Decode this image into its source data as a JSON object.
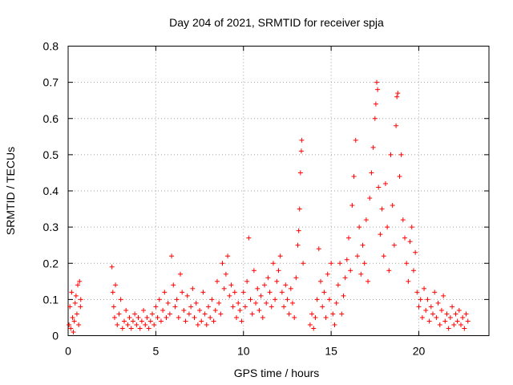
{
  "chart_data": {
    "type": "scatter",
    "title": "Day 204 of 2021, SRMTID for receiver spja",
    "xlabel": "GPS time / hours",
    "ylabel": "SRMTID / TECUs",
    "xlim": [
      0,
      24
    ],
    "ylim": [
      0,
      0.8
    ],
    "xticks": [
      0,
      5,
      10,
      15,
      20
    ],
    "yticks": [
      0,
      0.1,
      0.2,
      0.3,
      0.4,
      0.5,
      0.6,
      0.7,
      0.8
    ],
    "xtick_labels": [
      "0",
      "5",
      "10",
      "15",
      "20"
    ],
    "ytick_labels": [
      "0",
      "0.1",
      "0.2",
      "0.3",
      "0.4",
      "0.5",
      "0.6",
      "0.7",
      "0.8"
    ],
    "grid": true,
    "marker": "+",
    "color": "#ff0000",
    "series": [
      {
        "name": "SRMTID",
        "points": [
          [
            0.05,
            0.03
          ],
          [
            0.1,
            0.08
          ],
          [
            0.15,
            0.02
          ],
          [
            0.2,
            0.12
          ],
          [
            0.25,
            0.05
          ],
          [
            0.3,
            0.01
          ],
          [
            0.35,
            0.04
          ],
          [
            0.4,
            0.09
          ],
          [
            0.45,
            0.11
          ],
          [
            0.5,
            0.06
          ],
          [
            0.55,
            0.14
          ],
          [
            0.6,
            0.03
          ],
          [
            0.65,
            0.15
          ],
          [
            0.7,
            0.08
          ],
          [
            0.72,
            0.1
          ],
          [
            2.5,
            0.19
          ],
          [
            2.55,
            0.12
          ],
          [
            2.6,
            0.08
          ],
          [
            2.65,
            0.05
          ],
          [
            2.7,
            0.14
          ],
          [
            2.8,
            0.03
          ],
          [
            2.9,
            0.06
          ],
          [
            3.0,
            0.1
          ],
          [
            3.1,
            0.02
          ],
          [
            3.2,
            0.04
          ],
          [
            3.3,
            0.07
          ],
          [
            3.4,
            0.03
          ],
          [
            3.5,
            0.05
          ],
          [
            3.6,
            0.02
          ],
          [
            3.7,
            0.04
          ],
          [
            3.8,
            0.06
          ],
          [
            3.9,
            0.03
          ],
          [
            4.0,
            0.05
          ],
          [
            4.1,
            0.02
          ],
          [
            4.2,
            0.04
          ],
          [
            4.3,
            0.07
          ],
          [
            4.4,
            0.03
          ],
          [
            4.5,
            0.05
          ],
          [
            4.6,
            0.02
          ],
          [
            4.7,
            0.04
          ],
          [
            4.8,
            0.06
          ],
          [
            4.9,
            0.03
          ],
          [
            5.0,
            0.08
          ],
          [
            5.1,
            0.05
          ],
          [
            5.2,
            0.1
          ],
          [
            5.3,
            0.04
          ],
          [
            5.4,
            0.07
          ],
          [
            5.5,
            0.12
          ],
          [
            5.6,
            0.05
          ],
          [
            5.7,
            0.09
          ],
          [
            5.8,
            0.06
          ],
          [
            5.9,
            0.22
          ],
          [
            6.0,
            0.14
          ],
          [
            6.1,
            0.08
          ],
          [
            6.2,
            0.1
          ],
          [
            6.3,
            0.05
          ],
          [
            6.4,
            0.17
          ],
          [
            6.5,
            0.12
          ],
          [
            6.6,
            0.07
          ],
          [
            6.7,
            0.04
          ],
          [
            6.8,
            0.11
          ],
          [
            6.9,
            0.06
          ],
          [
            7.0,
            0.08
          ],
          [
            7.1,
            0.13
          ],
          [
            7.2,
            0.05
          ],
          [
            7.3,
            0.09
          ],
          [
            7.4,
            0.03
          ],
          [
            7.5,
            0.07
          ],
          [
            7.6,
            0.04
          ],
          [
            7.7,
            0.12
          ],
          [
            7.8,
            0.06
          ],
          [
            7.9,
            0.03
          ],
          [
            8.0,
            0.08
          ],
          [
            8.1,
            0.05
          ],
          [
            8.2,
            0.1
          ],
          [
            8.3,
            0.04
          ],
          [
            8.4,
            0.07
          ],
          [
            8.5,
            0.15
          ],
          [
            8.6,
            0.09
          ],
          [
            8.7,
            0.06
          ],
          [
            8.8,
            0.2
          ],
          [
            8.9,
            0.13
          ],
          [
            9.0,
            0.17
          ],
          [
            9.1,
            0.22
          ],
          [
            9.2,
            0.11
          ],
          [
            9.3,
            0.14
          ],
          [
            9.4,
            0.08
          ],
          [
            9.5,
            0.12
          ],
          [
            9.6,
            0.05
          ],
          [
            9.7,
            0.09
          ],
          [
            9.8,
            0.07
          ],
          [
            9.9,
            0.04
          ],
          [
            10.0,
            0.12
          ],
          [
            10.1,
            0.08
          ],
          [
            10.2,
            0.15
          ],
          [
            10.3,
            0.27
          ],
          [
            10.4,
            0.1
          ],
          [
            10.5,
            0.06
          ],
          [
            10.6,
            0.18
          ],
          [
            10.7,
            0.09
          ],
          [
            10.8,
            0.13
          ],
          [
            10.9,
            0.07
          ],
          [
            11.0,
            0.11
          ],
          [
            11.1,
            0.05
          ],
          [
            11.2,
            0.14
          ],
          [
            11.3,
            0.09
          ],
          [
            11.4,
            0.16
          ],
          [
            11.5,
            0.12
          ],
          [
            11.6,
            0.08
          ],
          [
            11.7,
            0.2
          ],
          [
            11.8,
            0.1
          ],
          [
            11.9,
            0.15
          ],
          [
            12.0,
            0.18
          ],
          [
            12.1,
            0.22
          ],
          [
            12.2,
            0.12
          ],
          [
            12.3,
            0.08
          ],
          [
            12.4,
            0.14
          ],
          [
            12.5,
            0.1
          ],
          [
            12.6,
            0.06
          ],
          [
            12.7,
            0.13
          ],
          [
            12.8,
            0.09
          ],
          [
            12.9,
            0.05
          ],
          [
            13.0,
            0.16
          ],
          [
            13.1,
            0.25
          ],
          [
            13.15,
            0.29
          ],
          [
            13.2,
            0.35
          ],
          [
            13.25,
            0.45
          ],
          [
            13.3,
            0.51
          ],
          [
            13.32,
            0.54
          ],
          [
            13.4,
            0.2
          ],
          [
            13.8,
            0.03
          ],
          [
            13.9,
            0.06
          ],
          [
            14.0,
            0.02
          ],
          [
            14.1,
            0.05
          ],
          [
            14.2,
            0.1
          ],
          [
            14.3,
            0.24
          ],
          [
            14.4,
            0.15
          ],
          [
            14.5,
            0.08
          ],
          [
            14.6,
            0.12
          ],
          [
            14.7,
            0.05
          ],
          [
            14.8,
            0.17
          ],
          [
            14.9,
            0.1
          ],
          [
            15.0,
            0.2
          ],
          [
            15.1,
            0.06
          ],
          [
            15.2,
            0.03
          ],
          [
            15.3,
            0.09
          ],
          [
            15.4,
            0.14
          ],
          [
            15.5,
            0.2
          ],
          [
            15.6,
            0.06
          ],
          [
            15.7,
            0.11
          ],
          [
            15.8,
            0.16
          ],
          [
            15.9,
            0.21
          ],
          [
            16.0,
            0.27
          ],
          [
            16.1,
            0.18
          ],
          [
            16.2,
            0.36
          ],
          [
            16.3,
            0.44
          ],
          [
            16.4,
            0.54
          ],
          [
            16.5,
            0.22
          ],
          [
            16.6,
            0.3
          ],
          [
            16.7,
            0.17
          ],
          [
            16.8,
            0.25
          ],
          [
            16.9,
            0.2
          ],
          [
            17.0,
            0.32
          ],
          [
            17.1,
            0.15
          ],
          [
            17.2,
            0.38
          ],
          [
            17.3,
            0.45
          ],
          [
            17.4,
            0.52
          ],
          [
            17.5,
            0.6
          ],
          [
            17.55,
            0.64
          ],
          [
            17.6,
            0.7
          ],
          [
            17.65,
            0.68
          ],
          [
            17.7,
            0.41
          ],
          [
            17.8,
            0.28
          ],
          [
            17.9,
            0.35
          ],
          [
            18.0,
            0.22
          ],
          [
            18.1,
            0.42
          ],
          [
            18.2,
            0.3
          ],
          [
            18.3,
            0.18
          ],
          [
            18.4,
            0.5
          ],
          [
            18.5,
            0.36
          ],
          [
            18.6,
            0.25
          ],
          [
            18.7,
            0.58
          ],
          [
            18.75,
            0.66
          ],
          [
            18.8,
            0.67
          ],
          [
            18.9,
            0.44
          ],
          [
            19.0,
            0.5
          ],
          [
            19.1,
            0.32
          ],
          [
            19.2,
            0.27
          ],
          [
            19.3,
            0.2
          ],
          [
            19.4,
            0.15
          ],
          [
            19.5,
            0.26
          ],
          [
            19.6,
            0.3
          ],
          [
            19.7,
            0.18
          ],
          [
            19.8,
            0.23
          ],
          [
            19.9,
            0.12
          ],
          [
            20.0,
            0.08
          ],
          [
            20.1,
            0.1
          ],
          [
            20.2,
            0.05
          ],
          [
            20.3,
            0.13
          ],
          [
            20.4,
            0.07
          ],
          [
            20.5,
            0.1
          ],
          [
            20.6,
            0.04
          ],
          [
            20.7,
            0.08
          ],
          [
            20.8,
            0.06
          ],
          [
            20.9,
            0.12
          ],
          [
            21.0,
            0.05
          ],
          [
            21.1,
            0.09
          ],
          [
            21.2,
            0.03
          ],
          [
            21.3,
            0.07
          ],
          [
            21.4,
            0.11
          ],
          [
            21.5,
            0.04
          ],
          [
            21.6,
            0.06
          ],
          [
            21.7,
            0.02
          ],
          [
            21.8,
            0.05
          ],
          [
            21.9,
            0.08
          ],
          [
            22.0,
            0.03
          ],
          [
            22.1,
            0.06
          ],
          [
            22.2,
            0.04
          ],
          [
            22.3,
            0.07
          ],
          [
            22.4,
            0.03
          ],
          [
            22.5,
            0.05
          ],
          [
            22.6,
            0.02
          ],
          [
            22.7,
            0.06
          ],
          [
            22.8,
            0.04
          ]
        ]
      }
    ]
  }
}
